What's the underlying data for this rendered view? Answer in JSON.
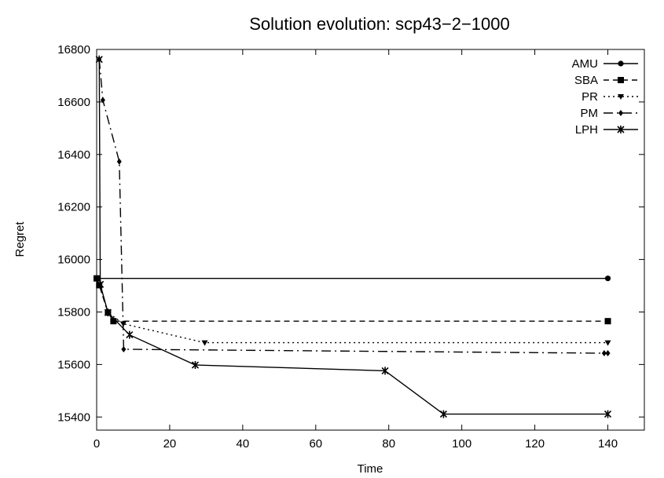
{
  "chart_data": {
    "type": "line",
    "title": "Solution evolution: scp43−2−1000",
    "xlabel": "Time",
    "ylabel": "Regret",
    "xlim": [
      0,
      150
    ],
    "ylim": [
      15350,
      16800
    ],
    "xticks": [
      "0",
      "20",
      "40",
      "60",
      "80",
      "100",
      "120",
      "140"
    ],
    "yticks": [
      "15400",
      "15600",
      "15800",
      "16000",
      "16200",
      "16400",
      "16600",
      "16800"
    ],
    "legend_position": "top-right",
    "grid": false,
    "series": [
      {
        "name": "AMU",
        "marker": "circle",
        "dash": "solid",
        "x": [
          0,
          140
        ],
        "y": [
          15928,
          15928
        ]
      },
      {
        "name": "SBA",
        "marker": "square",
        "dash": "dashed",
        "x": [
          0,
          0.7,
          3.1,
          4.6,
          140
        ],
        "y": [
          15928,
          15902,
          15798,
          15765,
          15765
        ]
      },
      {
        "name": "PR",
        "marker": "triangle-down",
        "dash": "dotted",
        "x": [
          0,
          0.7,
          3.1,
          7.3,
          29.6,
          140
        ],
        "y": [
          15928,
          15902,
          15798,
          15755,
          15683,
          15683
        ]
      },
      {
        "name": "PM",
        "marker": "diamond",
        "dash": "dashdot",
        "x": [
          0.7,
          1.7,
          6.2,
          7.4,
          139,
          140
        ],
        "y": [
          16762,
          16607,
          16373,
          15658,
          15643,
          15643
        ]
      },
      {
        "name": "LPH",
        "marker": "star",
        "dash": "solid",
        "x": [
          0.7,
          1.0,
          3.1,
          9.0,
          27.0,
          79.0,
          95.0,
          140
        ],
        "y": [
          16762,
          15905,
          15798,
          15713,
          15598,
          15576,
          15411,
          15411
        ]
      }
    ]
  }
}
